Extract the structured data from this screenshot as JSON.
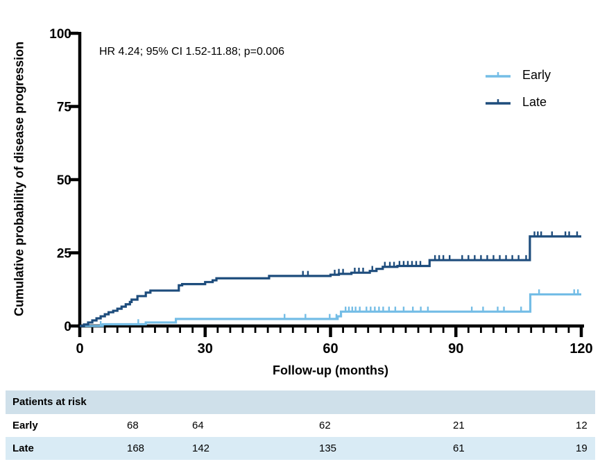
{
  "chart_data": {
    "type": "line",
    "subtype": "kaplan-meier-step",
    "annotation": "HR 4.24; 95% CI 1.52-11.88; p=0.006",
    "xlabel": "Follow-up (months)",
    "ylabel": "Cumulative probability of disease progression",
    "xlim": [
      0,
      120
    ],
    "ylim": [
      0,
      100
    ],
    "x_tick_labels": [
      "0",
      "30",
      "60",
      "90",
      "120"
    ],
    "x_major_ticks": [
      0,
      30,
      60,
      90,
      120
    ],
    "x_minor_step": 3,
    "y_tick_labels": [
      "0",
      "25",
      "50",
      "75",
      "100"
    ],
    "y_ticks": [
      0,
      25,
      50,
      75,
      100
    ],
    "grid": false,
    "legend_position": "top-right",
    "axis_color": "#000000",
    "series": [
      {
        "name": "Early",
        "color": "#74BDE6",
        "steps": [
          [
            0,
            0
          ],
          [
            5.5,
            0.6
          ],
          [
            15.8,
            1.2
          ],
          [
            23,
            2.4
          ],
          [
            61.7,
            3.3
          ],
          [
            62.5,
            4.9
          ],
          [
            107.8,
            10.8
          ]
        ],
        "censor_x": [
          5,
          14,
          49,
          54,
          59.8,
          61.4,
          63.6,
          64.4,
          65.2,
          66,
          67,
          68.6,
          69.6,
          70.6,
          71.6,
          72.6,
          74,
          75.5,
          77.5,
          79.7,
          81.6,
          83.3,
          93.8,
          96.5,
          100,
          101.5,
          105.6,
          109.9,
          118.3,
          119.2
        ]
      },
      {
        "name": "Late",
        "color": "#1D4C7C",
        "steps": [
          [
            0,
            0
          ],
          [
            1,
            0.5
          ],
          [
            2,
            1.2
          ],
          [
            3,
            1.9
          ],
          [
            4,
            2.6
          ],
          [
            5,
            3.3
          ],
          [
            6,
            4.0
          ],
          [
            6.9,
            4.7
          ],
          [
            8,
            5.2
          ],
          [
            9,
            5.9
          ],
          [
            10,
            6.6
          ],
          [
            11,
            7.4
          ],
          [
            12,
            8.2
          ],
          [
            12.4,
            9.0
          ],
          [
            13.8,
            10.2
          ],
          [
            15.8,
            11.4
          ],
          [
            16.9,
            12.1
          ],
          [
            23.7,
            13.9
          ],
          [
            24.5,
            14.3
          ],
          [
            30,
            15.0
          ],
          [
            31.8,
            15.6
          ],
          [
            32.7,
            16.3
          ],
          [
            45.3,
            17.1
          ],
          [
            60,
            17.5
          ],
          [
            62,
            17.8
          ],
          [
            65,
            18.2
          ],
          [
            69.4,
            18.8
          ],
          [
            71,
            19.5
          ],
          [
            72.5,
            20.2
          ],
          [
            76,
            20.5
          ],
          [
            83.7,
            22.5
          ],
          [
            107.7,
            30.6
          ]
        ],
        "censor_x": [
          53.4,
          54.6,
          61,
          62,
          63,
          65.8,
          66.8,
          67.8,
          70,
          73,
          74.2,
          75.2,
          76.5,
          77.5,
          78.5,
          79.5,
          80.5,
          81.5,
          85,
          86,
          87,
          88.5,
          91.5,
          93,
          94.5,
          96,
          97.5,
          99,
          100.5,
          102,
          103.5,
          105,
          106.8,
          108.8,
          109.6,
          110.4,
          113,
          116.2,
          117.1,
          119
        ]
      }
    ]
  },
  "risk_table": {
    "title": "Patients at risk",
    "header_bg": "#CFE0EA",
    "alt_row_bg": "#D9EBF5",
    "rows": [
      {
        "label": "Early",
        "values": [
          "68",
          "64",
          "62",
          "21",
          "12"
        ]
      },
      {
        "label": "Late",
        "values": [
          "168",
          "142",
          "135",
          "61",
          "19"
        ]
      }
    ]
  }
}
